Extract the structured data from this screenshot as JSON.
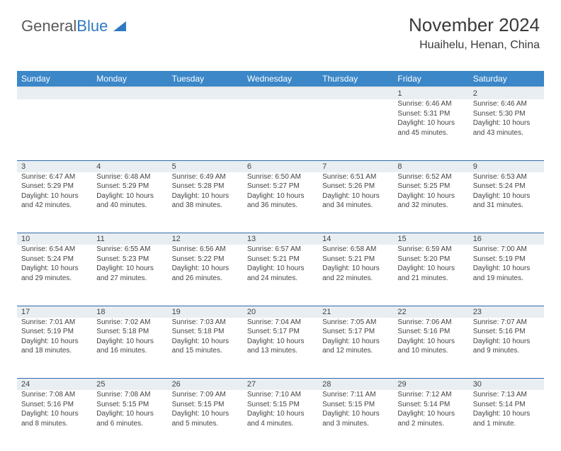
{
  "brand": {
    "part1": "General",
    "part2": "Blue"
  },
  "title": "November 2024",
  "location": "Huaihelu, Henan, China",
  "colors": {
    "header_bg": "#3b87c8",
    "header_text": "#ffffff",
    "daynum_bg": "#e9eef2",
    "grid_line": "#2f6aa8",
    "body_text": "#444444",
    "logo_gray": "#5a5a5a",
    "logo_blue": "#2f78c2"
  },
  "day_headers": [
    "Sunday",
    "Monday",
    "Tuesday",
    "Wednesday",
    "Thursday",
    "Friday",
    "Saturday"
  ],
  "weeks": [
    [
      null,
      null,
      null,
      null,
      null,
      {
        "n": "1",
        "sr": "6:46 AM",
        "ss": "5:31 PM",
        "dl": "10 hours and 45 minutes."
      },
      {
        "n": "2",
        "sr": "6:46 AM",
        "ss": "5:30 PM",
        "dl": "10 hours and 43 minutes."
      }
    ],
    [
      {
        "n": "3",
        "sr": "6:47 AM",
        "ss": "5:29 PM",
        "dl": "10 hours and 42 minutes."
      },
      {
        "n": "4",
        "sr": "6:48 AM",
        "ss": "5:29 PM",
        "dl": "10 hours and 40 minutes."
      },
      {
        "n": "5",
        "sr": "6:49 AM",
        "ss": "5:28 PM",
        "dl": "10 hours and 38 minutes."
      },
      {
        "n": "6",
        "sr": "6:50 AM",
        "ss": "5:27 PM",
        "dl": "10 hours and 36 minutes."
      },
      {
        "n": "7",
        "sr": "6:51 AM",
        "ss": "5:26 PM",
        "dl": "10 hours and 34 minutes."
      },
      {
        "n": "8",
        "sr": "6:52 AM",
        "ss": "5:25 PM",
        "dl": "10 hours and 32 minutes."
      },
      {
        "n": "9",
        "sr": "6:53 AM",
        "ss": "5:24 PM",
        "dl": "10 hours and 31 minutes."
      }
    ],
    [
      {
        "n": "10",
        "sr": "6:54 AM",
        "ss": "5:24 PM",
        "dl": "10 hours and 29 minutes."
      },
      {
        "n": "11",
        "sr": "6:55 AM",
        "ss": "5:23 PM",
        "dl": "10 hours and 27 minutes."
      },
      {
        "n": "12",
        "sr": "6:56 AM",
        "ss": "5:22 PM",
        "dl": "10 hours and 26 minutes."
      },
      {
        "n": "13",
        "sr": "6:57 AM",
        "ss": "5:21 PM",
        "dl": "10 hours and 24 minutes."
      },
      {
        "n": "14",
        "sr": "6:58 AM",
        "ss": "5:21 PM",
        "dl": "10 hours and 22 minutes."
      },
      {
        "n": "15",
        "sr": "6:59 AM",
        "ss": "5:20 PM",
        "dl": "10 hours and 21 minutes."
      },
      {
        "n": "16",
        "sr": "7:00 AM",
        "ss": "5:19 PM",
        "dl": "10 hours and 19 minutes."
      }
    ],
    [
      {
        "n": "17",
        "sr": "7:01 AM",
        "ss": "5:19 PM",
        "dl": "10 hours and 18 minutes."
      },
      {
        "n": "18",
        "sr": "7:02 AM",
        "ss": "5:18 PM",
        "dl": "10 hours and 16 minutes."
      },
      {
        "n": "19",
        "sr": "7:03 AM",
        "ss": "5:18 PM",
        "dl": "10 hours and 15 minutes."
      },
      {
        "n": "20",
        "sr": "7:04 AM",
        "ss": "5:17 PM",
        "dl": "10 hours and 13 minutes."
      },
      {
        "n": "21",
        "sr": "7:05 AM",
        "ss": "5:17 PM",
        "dl": "10 hours and 12 minutes."
      },
      {
        "n": "22",
        "sr": "7:06 AM",
        "ss": "5:16 PM",
        "dl": "10 hours and 10 minutes."
      },
      {
        "n": "23",
        "sr": "7:07 AM",
        "ss": "5:16 PM",
        "dl": "10 hours and 9 minutes."
      }
    ],
    [
      {
        "n": "24",
        "sr": "7:08 AM",
        "ss": "5:16 PM",
        "dl": "10 hours and 8 minutes."
      },
      {
        "n": "25",
        "sr": "7:08 AM",
        "ss": "5:15 PM",
        "dl": "10 hours and 6 minutes."
      },
      {
        "n": "26",
        "sr": "7:09 AM",
        "ss": "5:15 PM",
        "dl": "10 hours and 5 minutes."
      },
      {
        "n": "27",
        "sr": "7:10 AM",
        "ss": "5:15 PM",
        "dl": "10 hours and 4 minutes."
      },
      {
        "n": "28",
        "sr": "7:11 AM",
        "ss": "5:15 PM",
        "dl": "10 hours and 3 minutes."
      },
      {
        "n": "29",
        "sr": "7:12 AM",
        "ss": "5:14 PM",
        "dl": "10 hours and 2 minutes."
      },
      {
        "n": "30",
        "sr": "7:13 AM",
        "ss": "5:14 PM",
        "dl": "10 hours and 1 minute."
      }
    ]
  ],
  "labels": {
    "sunrise": "Sunrise: ",
    "sunset": "Sunset: ",
    "daylight": "Daylight: "
  }
}
